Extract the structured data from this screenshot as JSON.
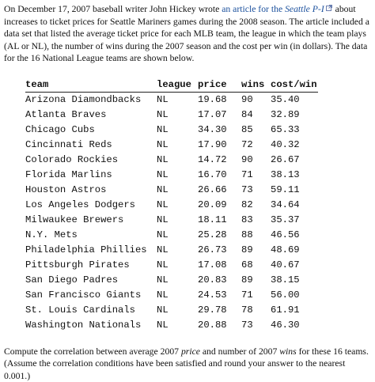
{
  "intro": {
    "p1": "On December 17, 2007 baseball writer John Hickey wrote ",
    "link_text": "an article for the ",
    "link_title": "Seattle P-I",
    "p2": " about increases to ticket prices for Seattle Mariners games during the 2008 season. The article included a data set that listed the average ticket price for each MLB team, the league in which the team plays (AL or NL), the number of wins during the 2007 season and the cost per win (in dollars). The data for the 16 National League teams are shown below.",
    "icon": "external-link-icon"
  },
  "table": {
    "headers": [
      "team",
      "league",
      "price",
      "wins",
      "cost/win"
    ],
    "rows": [
      [
        "Arizona Diamondbacks",
        "NL",
        "19.68",
        "90",
        "35.40"
      ],
      [
        "Atlanta Braves",
        "NL",
        "17.07",
        "84",
        "32.89"
      ],
      [
        "Chicago Cubs",
        "NL",
        "34.30",
        "85",
        "65.33"
      ],
      [
        "Cincinnati Reds",
        "NL",
        "17.90",
        "72",
        "40.32"
      ],
      [
        "Colorado Rockies",
        "NL",
        "14.72",
        "90",
        "26.67"
      ],
      [
        "Florida Marlins",
        "NL",
        "16.70",
        "71",
        "38.13"
      ],
      [
        "Houston Astros",
        "NL",
        "26.66",
        "73",
        "59.11"
      ],
      [
        "Los Angeles Dodgers",
        "NL",
        "20.09",
        "82",
        "34.64"
      ],
      [
        "Milwaukee Brewers",
        "NL",
        "18.11",
        "83",
        "35.37"
      ],
      [
        "N.Y. Mets",
        "NL",
        "25.28",
        "88",
        "46.56"
      ],
      [
        "Philadelphia Phillies",
        "NL",
        "26.73",
        "89",
        "48.69"
      ],
      [
        "Pittsburgh Pirates",
        "NL",
        "17.08",
        "68",
        "40.67"
      ],
      [
        "San Diego Padres",
        "NL",
        "20.83",
        "89",
        "38.15"
      ],
      [
        "San Francisco Giants",
        "NL",
        "24.53",
        "71",
        "56.00"
      ],
      [
        "St. Louis Cardinals",
        "NL",
        "29.78",
        "78",
        "61.91"
      ],
      [
        "Washington Nationals",
        "NL",
        "20.88",
        "73",
        "46.30"
      ]
    ]
  },
  "question": {
    "q1": "Compute the correlation between average 2007 ",
    "q_price": "price",
    "q2": " and number of 2007 ",
    "q_wins": "wins",
    "q3": " for these 16 teams. (Assume the correlation conditions have been satisfied and round your answer to the nearest 0.001.)"
  }
}
